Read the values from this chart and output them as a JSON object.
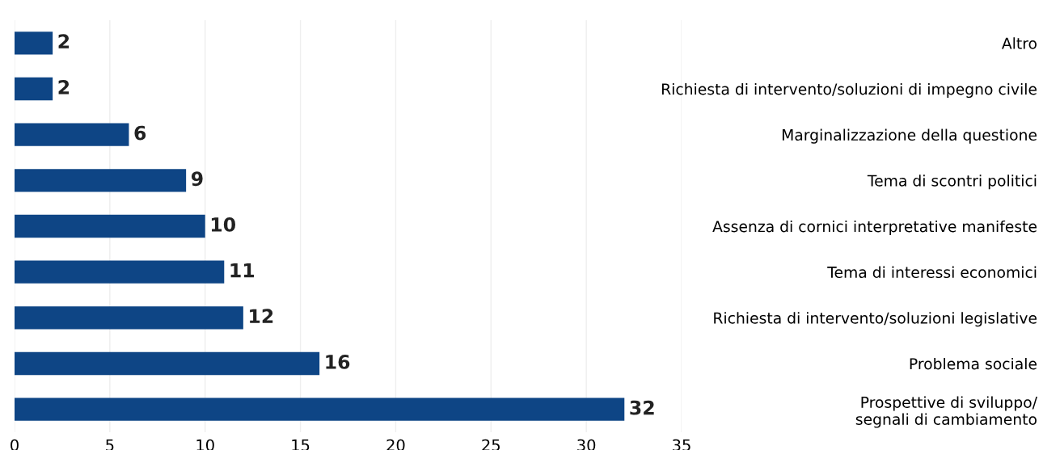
{
  "chart_data": {
    "type": "bar",
    "orientation": "horizontal",
    "categories": [
      "Altro",
      "Richiesta di intervento/soluzioni di impegno civile",
      "Marginalizzazione della questione",
      "Tema di scontri politici",
      "Assenza di cornici interpretative manifeste",
      "Tema di interessi economici",
      "Richiesta di intervento/soluzioni legislative",
      "Problema sociale",
      "Prospettive di sviluppo/\nsegnali di cambiamento"
    ],
    "values": [
      2,
      2,
      6,
      9,
      10,
      11,
      12,
      16,
      32
    ],
    "color": "#0e4585",
    "xlim": [
      0,
      35
    ],
    "xticks": [
      0,
      5,
      10,
      15,
      20,
      25,
      30,
      35
    ],
    "grid": "x",
    "data_labels": true
  }
}
